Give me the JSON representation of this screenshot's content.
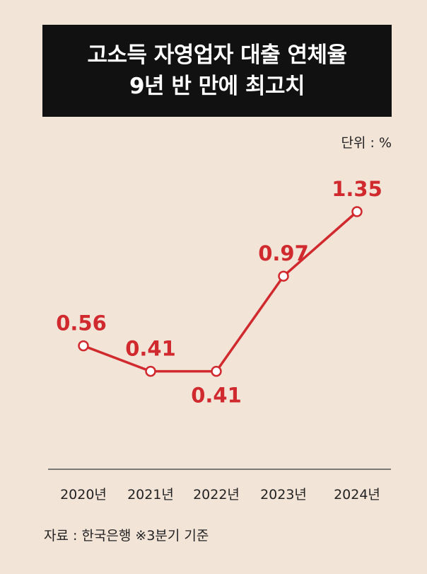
{
  "title_lines": [
    "고소득 자영업자 대출 연체율",
    "9년 반 만에 최고치"
  ],
  "unit_label": "단위 : %",
  "source": "자료 : 한국은행 ※3분기 기준",
  "colors": {
    "line": "#d02a2f",
    "value_text": "#d02a2f",
    "title_bg": "#111111",
    "background": "#f3e4d8",
    "axis": "#555555"
  },
  "chart_data": {
    "type": "line",
    "categories": [
      "2020년",
      "2021년",
      "2022년",
      "2023년",
      "2024년"
    ],
    "values": [
      0.56,
      0.41,
      0.41,
      0.97,
      1.35
    ],
    "data_labels": [
      "0.56",
      "0.41",
      "0.41",
      "0.97",
      "1.35"
    ],
    "data_label_position": [
      "above",
      "above",
      "below",
      "above",
      "above"
    ],
    "ylim": [
      0,
      1.6
    ],
    "grid": false,
    "legend": "none"
  }
}
